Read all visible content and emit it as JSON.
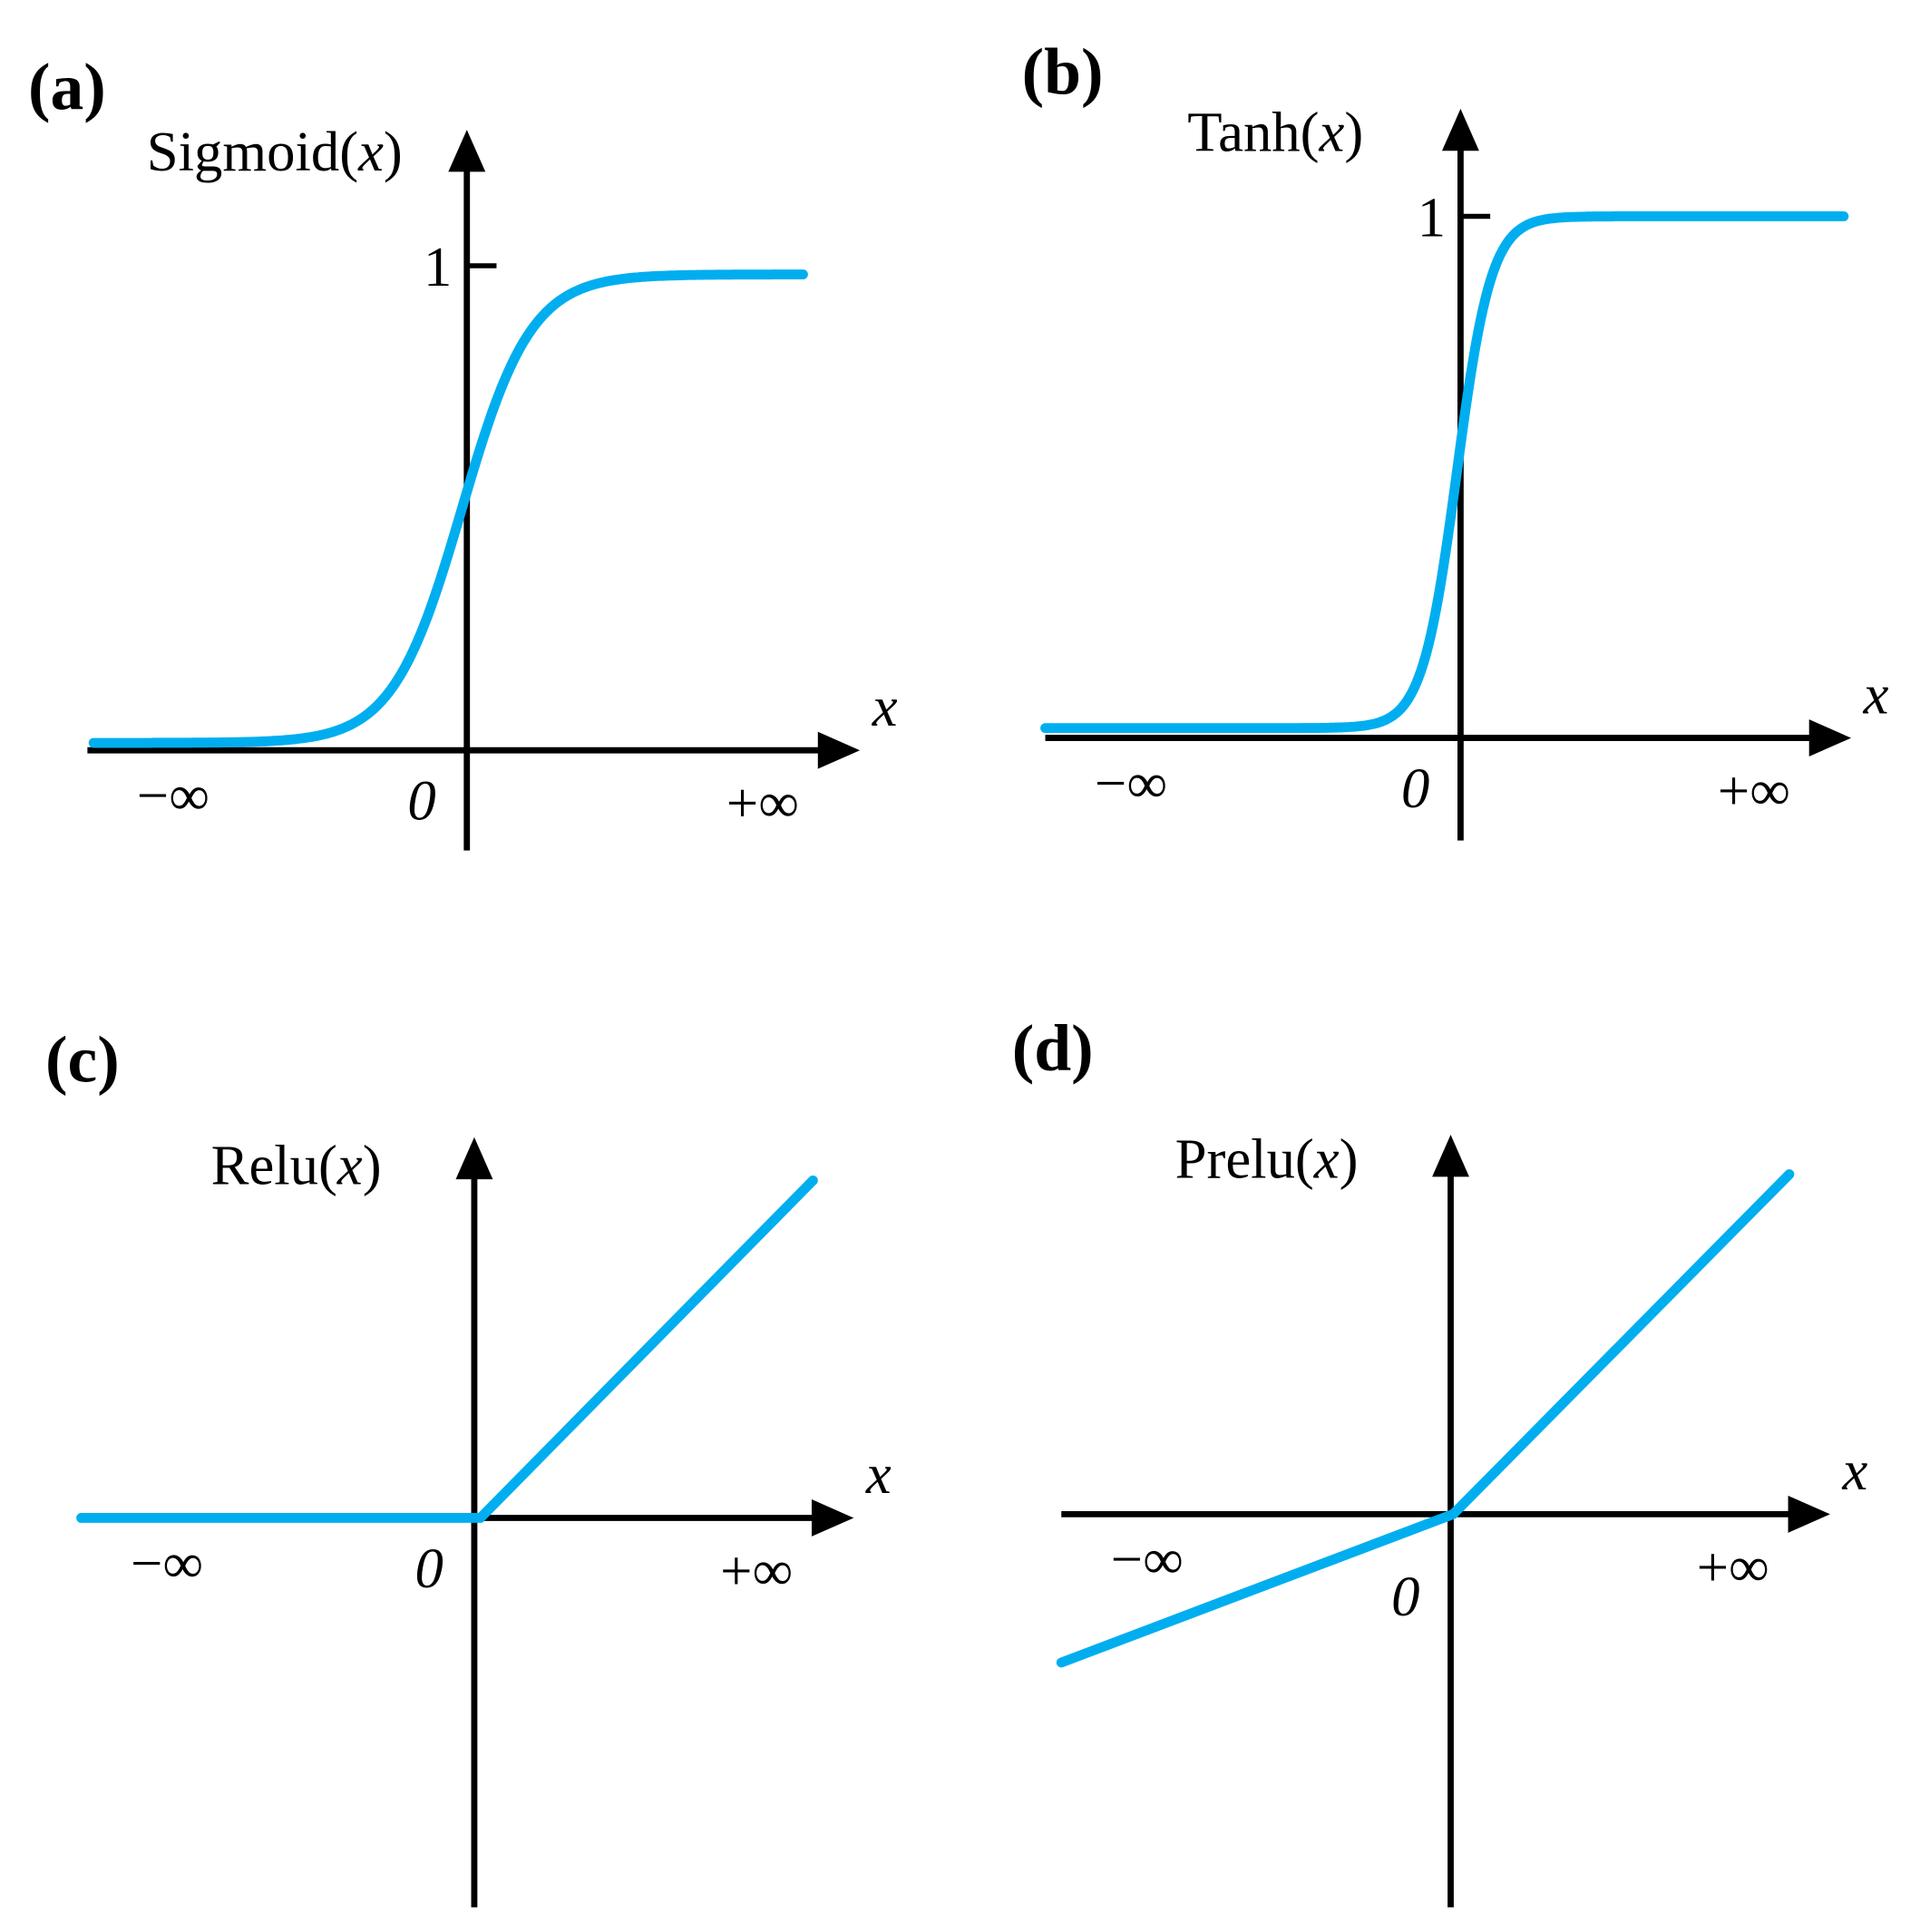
{
  "panels": [
    {
      "label": "(a)",
      "y_label": [
        "Sigmoid(",
        "x",
        ")"
      ],
      "one": "1",
      "x_label": "x",
      "neg": "−∞",
      "zero": "0",
      "pos": "+∞"
    },
    {
      "label": "(b)",
      "y_label": [
        "Tanh(",
        "x",
        ")"
      ],
      "one": "1",
      "x_label": "x",
      "neg": "−∞",
      "zero": "0",
      "pos": "+∞"
    },
    {
      "label": "(c)",
      "y_label": [
        "Relu(",
        "x",
        ")"
      ],
      "x_label": "x",
      "neg": "−∞",
      "zero": "0",
      "pos": "+∞"
    },
    {
      "label": "(d)",
      "y_label": [
        "Prelu(",
        "x",
        ")"
      ],
      "x_label": "x",
      "neg": "−∞",
      "zero": "0",
      "pos": "+∞"
    }
  ]
}
